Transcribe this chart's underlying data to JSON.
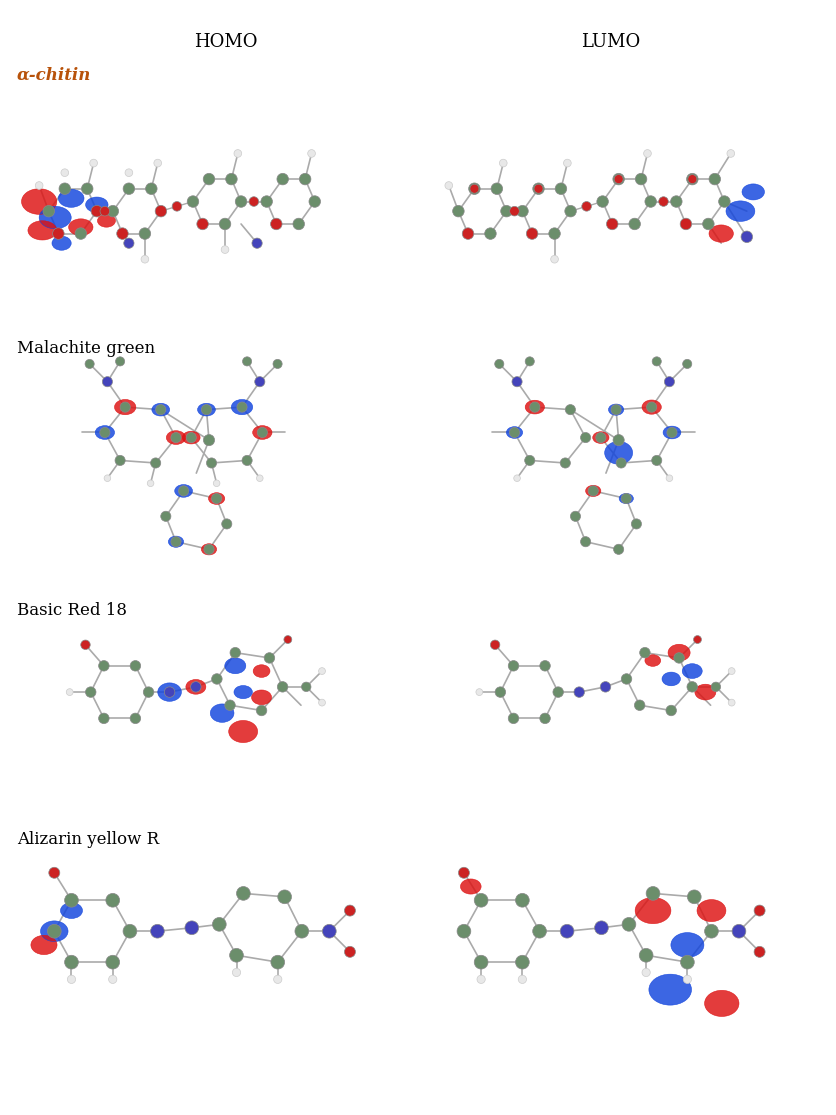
{
  "title_homo": "HOMO",
  "title_lumo": "LUMO",
  "title_fontsize": 13,
  "title_color": "#000000",
  "row_labels": [
    "α-chitin",
    "Malachite green",
    "Basic Red 18",
    "Alizarin yellow R"
  ],
  "row_label_colors": [
    "#B8520A",
    "#000000",
    "#000000",
    "#000000"
  ],
  "row_label_fontsize": 12,
  "background_color": "#ffffff",
  "figure_width": 8.36,
  "figure_height": 11.15,
  "atom_C": "#6B8E6B",
  "atom_H": "#E8E8E8",
  "atom_N": "#4444BB",
  "atom_O": "#CC2222",
  "orbital_blue": "#1144DD",
  "orbital_red": "#DD1111",
  "orbital_alpha": 0.82
}
